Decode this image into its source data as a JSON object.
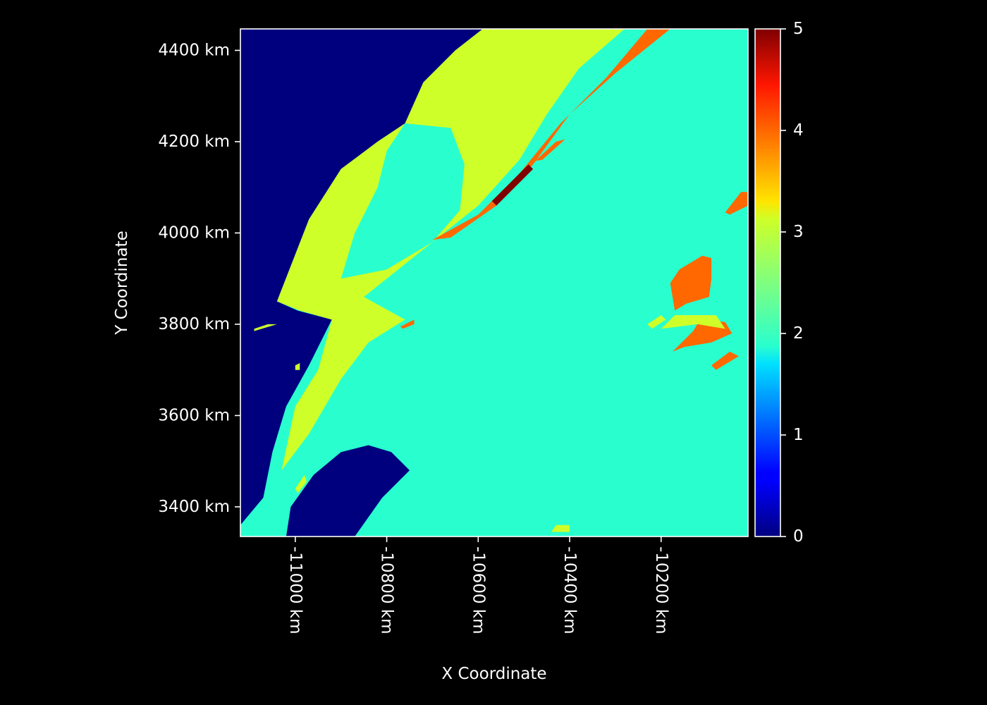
{
  "chart_data": {
    "type": "heatmap",
    "title": "",
    "xlabel": "X Coordinate",
    "ylabel": "Y Coordinate",
    "xlim": [
      -11120,
      -10010
    ],
    "ylim": [
      3335,
      4447
    ],
    "x_ticks": [
      {
        "value": -11000,
        "label": "-11000 km"
      },
      {
        "value": -10800,
        "label": "-10800 km"
      },
      {
        "value": -10600,
        "label": "-10600 km"
      },
      {
        "value": -10400,
        "label": "-10400 km"
      },
      {
        "value": -10200,
        "label": "-10200 km"
      }
    ],
    "y_ticks": [
      {
        "value": 3400,
        "label": "3400 km"
      },
      {
        "value": 3600,
        "label": "3600 km"
      },
      {
        "value": 3800,
        "label": "3800 km"
      },
      {
        "value": 4000,
        "label": "4000 km"
      },
      {
        "value": 4200,
        "label": "4200 km"
      },
      {
        "value": 4400,
        "label": "4400 km"
      }
    ],
    "colorbar": {
      "colormap": "jet",
      "range": [
        0,
        5
      ],
      "ticks": [
        {
          "value": 0,
          "label": "0"
        },
        {
          "value": 1,
          "label": "1"
        },
        {
          "value": 2,
          "label": "2"
        },
        {
          "value": 3,
          "label": "3"
        },
        {
          "value": 4,
          "label": "4"
        },
        {
          "value": 5,
          "label": "5"
        }
      ]
    },
    "class_colors": {
      "0": "#00007f",
      "2": "#29ffce",
      "3": "#ceff29",
      "4": "#ff6800",
      "5": "#7f0000"
    },
    "background_value": 2,
    "regions": [
      {
        "name": "water-west",
        "value": 0,
        "points": [
          [
            -11120,
            4447
          ],
          [
            -10590,
            4447
          ],
          [
            -10650,
            4400
          ],
          [
            -10720,
            4330
          ],
          [
            -10760,
            4240
          ],
          [
            -10820,
            4200
          ],
          [
            -10900,
            4140
          ],
          [
            -10970,
            4030
          ],
          [
            -11040,
            3850
          ],
          [
            -10995,
            3830
          ],
          [
            -10920,
            3810
          ],
          [
            -10970,
            3710
          ],
          [
            -11020,
            3620
          ],
          [
            -11050,
            3520
          ],
          [
            -11070,
            3420
          ],
          [
            -11120,
            3360
          ]
        ]
      },
      {
        "name": "water-southwest",
        "value": 0,
        "points": [
          [
            -11020,
            3335
          ],
          [
            -10870,
            3335
          ],
          [
            -10810,
            3420
          ],
          [
            -10750,
            3480
          ],
          [
            -10790,
            3520
          ],
          [
            -10840,
            3535
          ],
          [
            -10900,
            3520
          ],
          [
            -10960,
            3470
          ],
          [
            -11010,
            3400
          ]
        ]
      },
      {
        "name": "band-main",
        "value": 3,
        "points": [
          [
            -10590,
            4447
          ],
          [
            -10280,
            4447
          ],
          [
            -10380,
            4360
          ],
          [
            -10450,
            4260
          ],
          [
            -10510,
            4160
          ],
          [
            -10600,
            4060
          ],
          [
            -10700,
            3980
          ],
          [
            -10800,
            3900
          ],
          [
            -10850,
            3860
          ],
          [
            -10760,
            3810
          ],
          [
            -10840,
            3760
          ],
          [
            -10900,
            3680
          ],
          [
            -10970,
            3560
          ],
          [
            -11030,
            3480
          ],
          [
            -11000,
            3620
          ],
          [
            -10950,
            3700
          ],
          [
            -10920,
            3810
          ],
          [
            -10990,
            3830
          ],
          [
            -11040,
            3850
          ],
          [
            -10970,
            4030
          ],
          [
            -10900,
            4140
          ],
          [
            -10820,
            4200
          ],
          [
            -10760,
            4240
          ],
          [
            -10720,
            4330
          ],
          [
            -10650,
            4400
          ]
        ]
      },
      {
        "name": "inlet",
        "value": 2,
        "points": [
          [
            -10760,
            4240
          ],
          [
            -10660,
            4230
          ],
          [
            -10630,
            4150
          ],
          [
            -10640,
            4050
          ],
          [
            -10700,
            3980
          ],
          [
            -10800,
            3920
          ],
          [
            -10900,
            3900
          ],
          [
            -10870,
            4000
          ],
          [
            -10820,
            4100
          ],
          [
            -10800,
            4180
          ]
        ]
      },
      {
        "name": "ridge-band",
        "value": 4,
        "points": [
          [
            -10230,
            4447
          ],
          [
            -10180,
            4447
          ],
          [
            -10300,
            4350
          ],
          [
            -10400,
            4260
          ],
          [
            -10480,
            4150
          ],
          [
            -10560,
            4060
          ],
          [
            -10660,
            3990
          ],
          [
            -10700,
            3985
          ],
          [
            -10600,
            4040
          ],
          [
            -10510,
            4130
          ],
          [
            -10420,
            4240
          ],
          [
            -10320,
            4340
          ]
        ]
      },
      {
        "name": "ridge-peak",
        "value": 5,
        "points": [
          [
            -10490,
            4150
          ],
          [
            -10480,
            4140
          ],
          [
            -10560,
            4060
          ],
          [
            -10570,
            4070
          ]
        ]
      },
      {
        "name": "ridge-fleck",
        "value": 4,
        "points": [
          [
            -10430,
            4200
          ],
          [
            -10410,
            4205
          ],
          [
            -10460,
            4160
          ],
          [
            -10475,
            4158
          ]
        ]
      },
      {
        "name": "east-patch-a",
        "value": 4,
        "points": [
          [
            -10110,
            3950
          ],
          [
            -10090,
            3945
          ],
          [
            -10090,
            3900
          ],
          [
            -10095,
            3860
          ],
          [
            -10145,
            3845
          ],
          [
            -10170,
            3830
          ],
          [
            -10180,
            3890
          ],
          [
            -10160,
            3920
          ]
        ]
      },
      {
        "name": "east-patch-b",
        "value": 4,
        "points": [
          [
            -10115,
            3810
          ],
          [
            -10060,
            3805
          ],
          [
            -10045,
            3780
          ],
          [
            -10090,
            3760
          ],
          [
            -10150,
            3750
          ],
          [
            -10175,
            3740
          ],
          [
            -10130,
            3785
          ]
        ]
      },
      {
        "name": "east-patch-c",
        "value": 4,
        "points": [
          [
            -10050,
            3740
          ],
          [
            -10030,
            3730
          ],
          [
            -10080,
            3700
          ],
          [
            -10090,
            3710
          ]
        ]
      },
      {
        "name": "east-patch-d",
        "value": 4,
        "points": [
          [
            -10025,
            4090
          ],
          [
            -10010,
            4090
          ],
          [
            -10010,
            4060
          ],
          [
            -10050,
            4040
          ],
          [
            -10060,
            4045
          ]
        ]
      },
      {
        "name": "central-fleck",
        "value": 4,
        "points": [
          [
            -10765,
            3790
          ],
          [
            -10740,
            3800
          ],
          [
            -10740,
            3810
          ],
          [
            -10770,
            3795
          ]
        ]
      },
      {
        "name": "islet-a",
        "value": 3,
        "points": [
          [
            -11090,
            3790
          ],
          [
            -11060,
            3800
          ],
          [
            -11040,
            3800
          ],
          [
            -11090,
            3785
          ]
        ]
      },
      {
        "name": "islet-b",
        "value": 3,
        "points": [
          [
            -11000,
            3710
          ],
          [
            -10990,
            3715
          ],
          [
            -10990,
            3700
          ],
          [
            -11000,
            3700
          ]
        ]
      },
      {
        "name": "coastal-fleck-a",
        "value": 3,
        "points": [
          [
            -11000,
            3440
          ],
          [
            -10980,
            3470
          ],
          [
            -10975,
            3455
          ],
          [
            -10995,
            3430
          ]
        ]
      },
      {
        "name": "east-speckle-a",
        "value": 3,
        "points": [
          [
            -10170,
            3820
          ],
          [
            -10080,
            3820
          ],
          [
            -10060,
            3790
          ],
          [
            -10120,
            3800
          ],
          [
            -10200,
            3790
          ]
        ]
      },
      {
        "name": "east-speckle-b",
        "value": 3,
        "points": [
          [
            -10230,
            3800
          ],
          [
            -10200,
            3820
          ],
          [
            -10190,
            3810
          ],
          [
            -10220,
            3790
          ]
        ]
      },
      {
        "name": "south-fleck",
        "value": 3,
        "points": [
          [
            -10430,
            3360
          ],
          [
            -10400,
            3360
          ],
          [
            -10400,
            3345
          ],
          [
            -10440,
            3345
          ]
        ]
      }
    ]
  }
}
